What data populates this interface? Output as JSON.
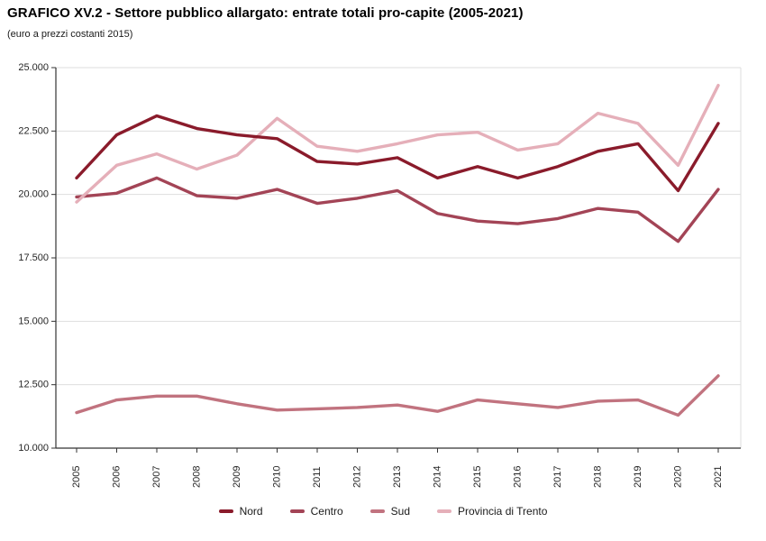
{
  "page": {
    "title": "GRAFICO XV.2 - Settore pubblico allargato: entrate totali pro-capite (2005-2021)",
    "subtitle": "(euro a prezzi costanti 2015)"
  },
  "chart_data": {
    "type": "line",
    "title": "GRAFICO XV.2 - Settore pubblico allargato: entrate totali pro-capite (2005-2021)",
    "subtitle": "(euro a prezzi costanti 2015)",
    "x": [
      "2005",
      "2006",
      "2007",
      "2008",
      "2009",
      "2010",
      "2011",
      "2012",
      "2013",
      "2014",
      "2015",
      "2016",
      "2017",
      "2018",
      "2019",
      "2020",
      "2021"
    ],
    "series": [
      {
        "name": "Nord",
        "color": "#8A1B2B",
        "values": [
          20650,
          22350,
          23100,
          22600,
          22350,
          22200,
          21300,
          21200,
          21450,
          20650,
          21100,
          20650,
          21100,
          21700,
          22000,
          20150,
          22800
        ]
      },
      {
        "name": "Centro",
        "color": "#A34456",
        "values": [
          19900,
          20050,
          20650,
          19950,
          19850,
          20200,
          19650,
          19850,
          20150,
          19250,
          18950,
          18850,
          19050,
          19450,
          19300,
          18150,
          20200
        ]
      },
      {
        "name": "Sud",
        "color": "#C1737F",
        "values": [
          11400,
          11900,
          12050,
          12050,
          11750,
          11500,
          11550,
          11600,
          11700,
          11450,
          11900,
          11750,
          11600,
          11850,
          11900,
          11300,
          12850
        ]
      },
      {
        "name": "Provincia di Trento",
        "color": "#E5AFB9",
        "values": [
          19700,
          21150,
          21600,
          21000,
          21550,
          23000,
          21900,
          21700,
          22000,
          22350,
          22450,
          21750,
          22000,
          23200,
          22800,
          21150,
          24300
        ]
      }
    ],
    "ylim": [
      10000,
      25000
    ],
    "ytick_values": [
      10000,
      12500,
      15000,
      17500,
      20000,
      22500,
      25000
    ],
    "ytick_labels": [
      "10.000",
      "12.500",
      "15.000",
      "17.500",
      "20.000",
      "22.500",
      "25.000"
    ],
    "xlabel": "",
    "ylabel": "",
    "grid": "horizontal",
    "legend_position": "bottom",
    "colors": {
      "axis": "#333333",
      "grid": "#DEDEDE",
      "tick_text": "#262626"
    }
  }
}
